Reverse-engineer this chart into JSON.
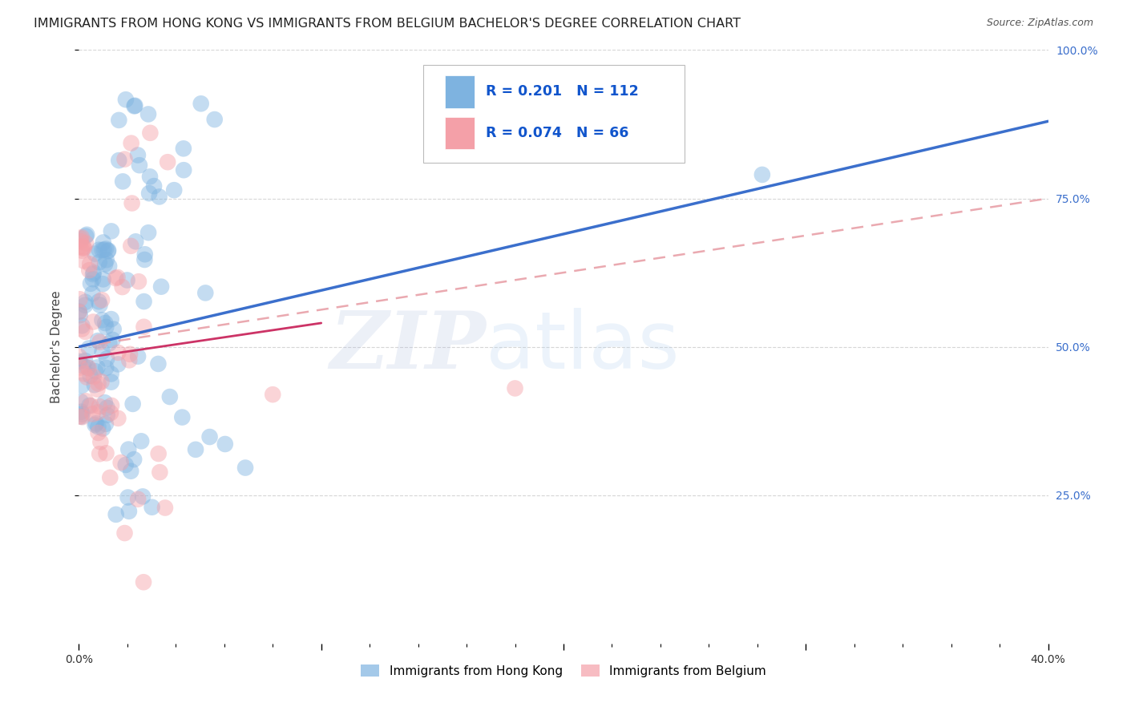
{
  "title": "IMMIGRANTS FROM HONG KONG VS IMMIGRANTS FROM BELGIUM BACHELOR'S DEGREE CORRELATION CHART",
  "source": "Source: ZipAtlas.com",
  "xmin": 0.0,
  "xmax": 40.0,
  "ymin": 0.0,
  "ymax": 100.0,
  "series1_color": "#7EB3E0",
  "series2_color": "#F4A0A8",
  "series1_label": "Immigrants from Hong Kong",
  "series2_label": "Immigrants from Belgium",
  "series1_R": 0.201,
  "series1_N": 112,
  "series2_R": 0.074,
  "series2_N": 66,
  "legend_R_color": "#1155CC",
  "trendline1_color": "#3B6FCC",
  "trendline2_color": "#CC3366",
  "trendline2_solid_end_x": 10.0,
  "dashed_line_color": "#E8A0A8",
  "watermark_zip": "ZIP",
  "watermark_atlas": "atlas",
  "ylabel_label": "Bachelor's Degree",
  "background_color": "#FFFFFF",
  "grid_color": "#CCCCCC",
  "title_fontsize": 11.5,
  "axis_label_fontsize": 11,
  "tick_fontsize": 10,
  "right_tick_color": "#3B6FCC",
  "blue_line_y0": 50.0,
  "blue_line_y1": 88.0,
  "pink_solid_y0": 48.0,
  "pink_solid_y1": 54.0,
  "pink_solid_x1": 10.0,
  "dashed_y0": 50.0,
  "dashed_y1": 75.0
}
